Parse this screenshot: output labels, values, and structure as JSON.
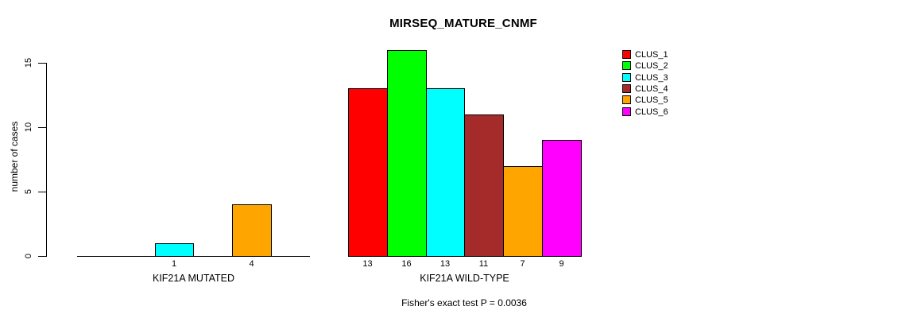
{
  "title": "MIRSEQ_MATURE_CNMF",
  "annotation": "Fisher's exact test P = 0.0036",
  "y_axis": {
    "label": "number of cases",
    "tick_labels": [
      "0",
      "5",
      "10",
      "15"
    ]
  },
  "legend": {
    "entries": [
      {
        "label": "CLUS_1",
        "color": "#FF0000"
      },
      {
        "label": "CLUS_2",
        "color": "#00FF00"
      },
      {
        "label": "CLUS_3",
        "color": "#00FFFF"
      },
      {
        "label": "CLUS_4",
        "color": "#A52A2A"
      },
      {
        "label": "CLUS_5",
        "color": "#FFA500"
      },
      {
        "label": "CLUS_6",
        "color": "#FF00FF"
      }
    ]
  },
  "chart_data": {
    "type": "bar",
    "title": "MIRSEQ_MATURE_CNMF",
    "ylabel": "number of cases",
    "xlabel": "",
    "ylim": [
      0,
      16
    ],
    "yticks": [
      0,
      5,
      10,
      15
    ],
    "grid": false,
    "legend_position": "topright",
    "cluster_names": [
      "CLUS_1",
      "CLUS_2",
      "CLUS_3",
      "CLUS_4",
      "CLUS_5",
      "CLUS_6"
    ],
    "colors": [
      "#FF0000",
      "#00FF00",
      "#00FFFF",
      "#A52A2A",
      "#FFA500",
      "#FF00FF"
    ],
    "groups": [
      {
        "label": "KIF21A MUTATED",
        "values": [
          0,
          0,
          1,
          0,
          4,
          0
        ],
        "bar_value_labels": [
          "",
          "",
          "1",
          "",
          "4",
          ""
        ]
      },
      {
        "label": "KIF21A WILD-TYPE",
        "values": [
          13,
          16,
          13,
          11,
          7,
          9
        ],
        "bar_value_labels": [
          "13",
          "16",
          "13",
          "11",
          "7",
          "9"
        ]
      }
    ],
    "annotation": "Fisher's exact test P = 0.0036"
  }
}
